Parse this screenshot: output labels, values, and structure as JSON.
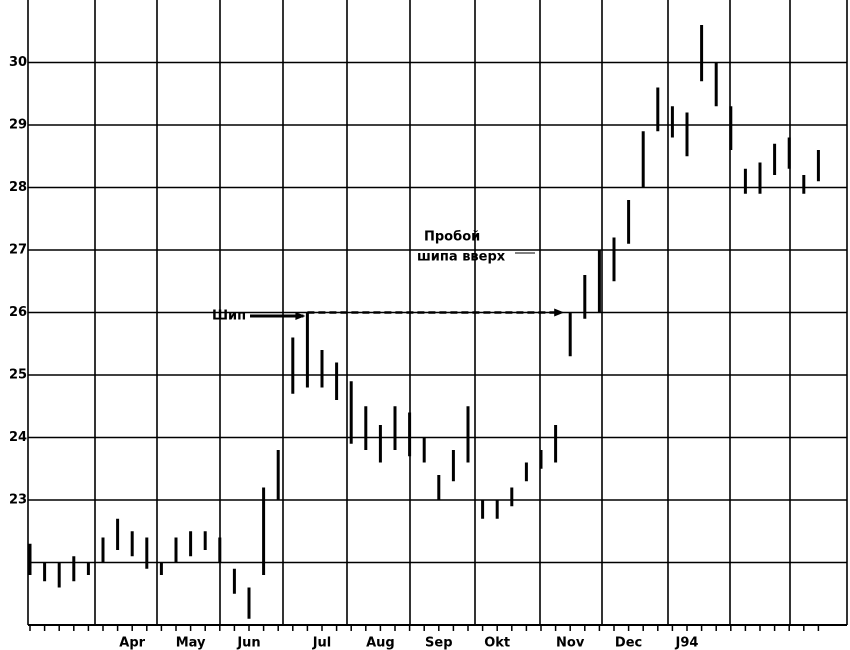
{
  "chart_data": {
    "type": "range-bar",
    "categories": [
      null,
      null,
      null,
      null,
      null,
      null,
      null,
      "Apr",
      null,
      null,
      null,
      "May",
      null,
      null,
      null,
      "Jun",
      null,
      null,
      null,
      null,
      "Jul",
      null,
      null,
      null,
      "Aug",
      null,
      null,
      null,
      "Sep",
      null,
      null,
      null,
      "Okt",
      null,
      null,
      null,
      null,
      "Nov",
      null,
      null,
      null,
      "Dec",
      null,
      null,
      null,
      "J94",
      null,
      null,
      null,
      null,
      null,
      null,
      null,
      null,
      null
    ],
    "low": [
      21.8,
      21.7,
      21.6,
      21.7,
      21.8,
      22.0,
      22.2,
      22.1,
      21.9,
      21.8,
      22.0,
      22.1,
      22.2,
      22.0,
      21.5,
      21.1,
      21.8,
      23.0,
      24.7,
      24.8,
      24.8,
      24.6,
      23.9,
      23.8,
      23.6,
      23.8,
      23.7,
      23.6,
      23.0,
      23.3,
      23.6,
      22.7,
      22.7,
      22.9,
      23.3,
      23.5,
      23.6,
      25.3,
      25.9,
      26.0,
      26.5,
      27.1,
      28.0,
      28.9,
      28.8,
      28.5,
      29.7,
      29.3,
      28.6,
      27.9,
      27.9,
      28.2,
      28.3,
      27.9,
      28.1
    ],
    "high": [
      22.3,
      22.0,
      22.0,
      22.1,
      22.0,
      22.4,
      22.7,
      22.5,
      22.4,
      22.0,
      22.4,
      22.5,
      22.5,
      22.4,
      21.9,
      21.6,
      23.2,
      23.8,
      25.6,
      26.0,
      25.4,
      25.2,
      24.9,
      24.5,
      24.2,
      24.5,
      24.4,
      24.0,
      23.4,
      23.8,
      24.5,
      23.0,
      23.0,
      23.2,
      23.6,
      23.8,
      24.2,
      26.0,
      26.6,
      27.0,
      27.2,
      27.8,
      28.9,
      29.6,
      29.3,
      29.2,
      30.6,
      30.0,
      29.3,
      28.3,
      28.4,
      28.7,
      28.8,
      28.2,
      28.6
    ],
    "color": "#000000",
    "ylim": [
      21,
      31
    ],
    "yticks": [
      23,
      24,
      25,
      26,
      27,
      28,
      29,
      30
    ],
    "minor_gridlines": [
      22
    ],
    "grid": true,
    "annotations": {
      "spike": "Шип",
      "breakout": [
        "Пробой",
        "шипа вверх"
      ]
    }
  }
}
